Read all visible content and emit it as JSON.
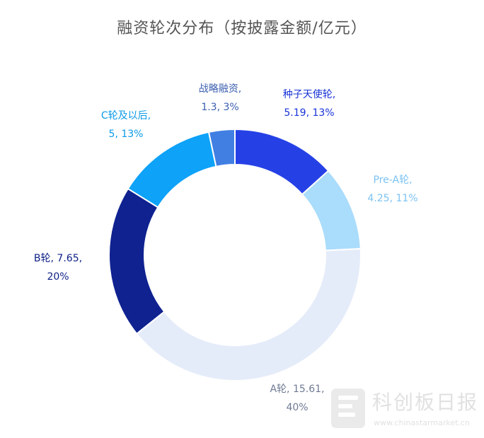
{
  "chart_data": {
    "type": "donut",
    "title": "融资轮次分布（按披露金额/亿元）",
    "categories": [
      "种子天使轮",
      "Pre-A轮",
      "A轮",
      "B轮",
      "C轮及以后",
      "战略融资"
    ],
    "values": [
      5.19,
      4.25,
      15.61,
      7.65,
      5,
      1.3
    ],
    "percents": [
      "13%",
      "11%",
      "40%",
      "20%",
      "13%",
      "3%"
    ],
    "colors": [
      "#2541e6",
      "#aadcfb",
      "#e5ecf9",
      "#0f2290",
      "#0ea2f8",
      "#417fe3"
    ],
    "label_colors": [
      "#1733d6",
      "#7cc3f2",
      "#6f7a94",
      "#0d1f85",
      "#0d9be8",
      "#3c5fb0"
    ],
    "labels": [
      {
        "line1": "种子天使轮,",
        "line2": "5.19, 13%"
      },
      {
        "line1": "Pre-A轮,",
        "line2": "4.25, 11%"
      },
      {
        "line1": "A轮, 15.61,",
        "line2": "40%"
      },
      {
        "line1": "B轮, 7.65,",
        "line2": "20%"
      },
      {
        "line1": "C轮及以后,",
        "line2": "5, 13%"
      },
      {
        "line1": "战略融资,",
        "line2": "1.3, 3%"
      }
    ]
  },
  "watermark": {
    "name": "科创板日报",
    "url": "www.chinastarmarket.cn"
  }
}
